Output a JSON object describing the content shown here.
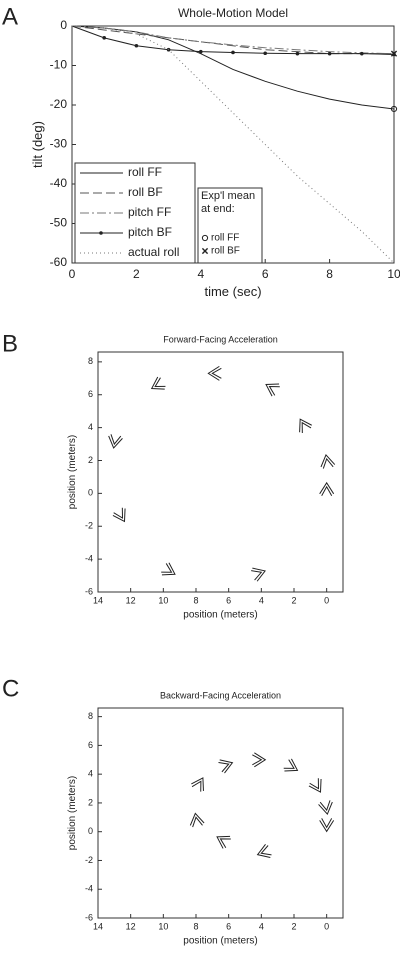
{
  "chart_data": [
    {
      "type": "line",
      "panel": "A",
      "title": "Whole-Motion Model",
      "xlabel": "time (sec)",
      "ylabel": "tilt (deg)",
      "x": [
        0,
        1,
        2,
        3,
        4,
        5,
        6,
        7,
        8,
        9,
        10
      ],
      "series": [
        {
          "name": "roll FF",
          "color": "#222222",
          "style": "solid",
          "values": [
            0,
            -0.5,
            -1.5,
            -3.5,
            -7,
            -11,
            -14,
            -16.5,
            -18.5,
            -20,
            -21
          ]
        },
        {
          "name": "roll BF",
          "color": "#555555",
          "style": "dashed",
          "values": [
            0,
            -1,
            -2,
            -3,
            -4,
            -5,
            -6,
            -6.5,
            -7,
            -7,
            -7
          ]
        },
        {
          "name": "pitch FF",
          "color": "#777777",
          "style": "dashdot",
          "values": [
            0,
            -0.5,
            -1.5,
            -3,
            -4,
            -4.8,
            -5.5,
            -6,
            -6.5,
            -6.8,
            -7
          ]
        },
        {
          "name": "pitch BF",
          "color": "#222222",
          "style": "solid",
          "marker": "dot",
          "values": [
            0,
            -3,
            -5,
            -6,
            -6.5,
            -6.7,
            -6.9,
            -7,
            -7,
            -7,
            -7.2
          ]
        },
        {
          "name": "actual roll",
          "color": "#777777",
          "style": "dotted",
          "values": [
            0,
            -0.5,
            -2,
            -6,
            -14,
            -22,
            -30,
            -38,
            -45,
            -52,
            -60
          ]
        }
      ],
      "xlim": [
        0,
        10
      ],
      "ylim": [
        -60,
        0
      ],
      "xticks": [
        0,
        2,
        4,
        6,
        8,
        10
      ],
      "yticks": [
        0,
        -10,
        -20,
        -30,
        -40,
        -50,
        -60
      ],
      "legend": "lower left",
      "annotation": {
        "title": "Exp'l mean at end:",
        "points": [
          {
            "name": "roll FF",
            "marker": "o",
            "x": 10,
            "y": -21
          },
          {
            "name": "roll BF",
            "marker": "x",
            "x": 10,
            "y": -7
          }
        ]
      }
    },
    {
      "type": "scatter",
      "panel": "B",
      "title": "Forward-Facing Acceleration",
      "marker": "chevron",
      "xlabel": "position (meters)",
      "ylabel": "position (meters)",
      "x": [
        0,
        0,
        1.5,
        3.5,
        7,
        10.5,
        13,
        12.5,
        9.5,
        4
      ],
      "y": [
        0.4,
        2.1,
        4.3,
        6.5,
        7.3,
        6.5,
        3,
        -1.5,
        -4.8,
        -4.8
      ],
      "angles": [
        90,
        100,
        120,
        150,
        180,
        210,
        260,
        300,
        330,
        20
      ],
      "xlim": [
        14,
        -1
      ],
      "ylim": [
        -6,
        8.6
      ],
      "xticks": [
        14,
        12,
        10,
        8,
        6,
        4,
        2,
        0
      ],
      "yticks": [
        -6,
        -4,
        -2,
        0,
        2,
        4,
        6,
        8
      ]
    },
    {
      "type": "scatter",
      "panel": "C",
      "title": "Backward-Facing Acceleration",
      "marker": "chevron",
      "xlabel": "position (meters)",
      "ylabel": "position (meters)",
      "x": [
        0,
        0,
        0.5,
        2,
        4,
        6,
        7.7,
        8,
        6.5,
        4
      ],
      "y": [
        0.3,
        1.5,
        3,
        4.4,
        5,
        4.7,
        3.5,
        1,
        -0.5,
        -1.5
      ],
      "angles": [
        270,
        280,
        300,
        330,
        0,
        20,
        60,
        100,
        150,
        200
      ],
      "xlim": [
        14,
        -1
      ],
      "ylim": [
        -6,
        8.6
      ],
      "xticks": [
        14,
        12,
        10,
        8,
        6,
        4,
        2,
        0
      ],
      "yticks": [
        -6,
        -4,
        -2,
        0,
        2,
        4,
        6,
        8
      ]
    }
  ]
}
